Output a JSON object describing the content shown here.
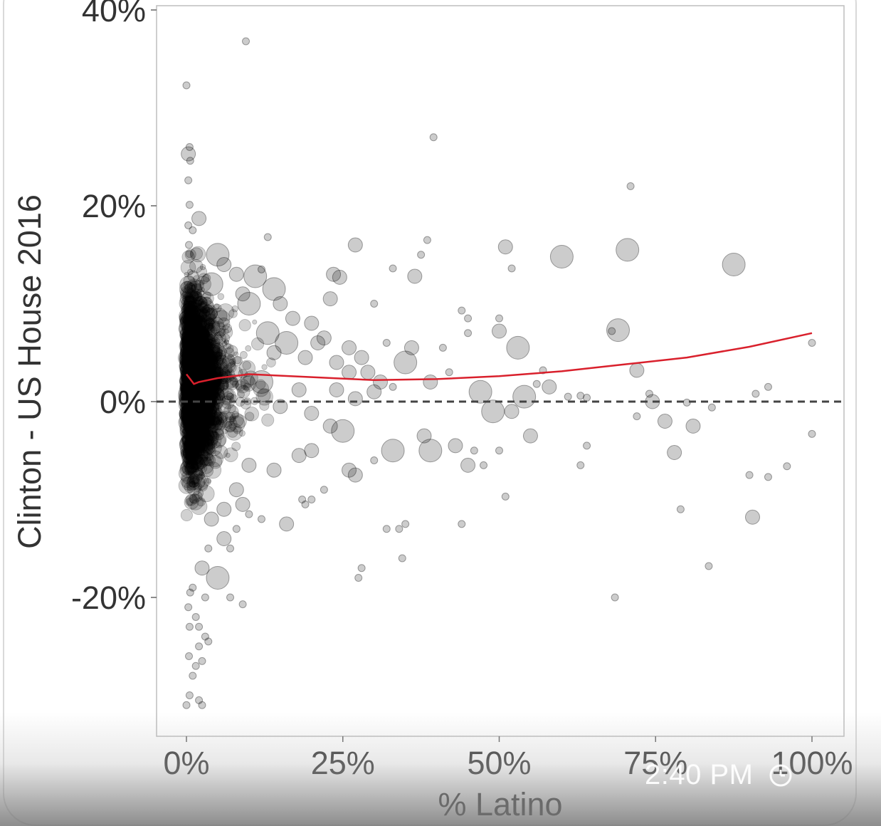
{
  "chart_data": {
    "type": "scatter",
    "title": "",
    "xlabel": "% Latino",
    "ylabel": "Clinton - US House 2016",
    "xlim": [
      -0.05,
      1.05
    ],
    "ylim": [
      -0.34,
      0.41
    ],
    "x_ticks": [
      {
        "value": 0,
        "label": "0%"
      },
      {
        "value": 0.25,
        "label": "25%"
      },
      {
        "value": 0.5,
        "label": "50%"
      },
      {
        "value": 0.75,
        "label": "75%"
      },
      {
        "value": 1.0,
        "label": "100%"
      }
    ],
    "y_ticks": [
      {
        "value": 0.4,
        "label": "40%"
      },
      {
        "value": 0.2,
        "label": "20%"
      },
      {
        "value": 0,
        "label": "0%"
      },
      {
        "value": -0.2,
        "label": "-20%"
      }
    ],
    "reference_line": {
      "y": 0,
      "style": "dashed",
      "color": "#444444"
    },
    "trend": {
      "color": "#d9202c",
      "points": [
        [
          0.0,
          0.028
        ],
        [
          0.012,
          0.018
        ],
        [
          0.02,
          0.02
        ],
        [
          0.05,
          0.024
        ],
        [
          0.1,
          0.028
        ],
        [
          0.2,
          0.025
        ],
        [
          0.3,
          0.022
        ],
        [
          0.4,
          0.023
        ],
        [
          0.5,
          0.026
        ],
        [
          0.6,
          0.031
        ],
        [
          0.7,
          0.038
        ],
        [
          0.8,
          0.045
        ],
        [
          0.9,
          0.056
        ],
        [
          1.0,
          0.07
        ]
      ]
    },
    "points": [
      [
        0.095,
        0.368,
        1
      ],
      [
        0.0,
        0.323,
        1
      ],
      [
        0.003,
        0.253,
        2
      ],
      [
        0.006,
        0.246,
        1
      ],
      [
        0.003,
        0.226,
        1
      ],
      [
        0.005,
        0.201,
        1
      ],
      [
        0.02,
        0.187,
        2
      ],
      [
        0.395,
        0.27,
        1
      ],
      [
        0.71,
        0.22,
        1
      ],
      [
        0.27,
        0.16,
        2
      ],
      [
        0.51,
        0.158,
        2
      ],
      [
        0.6,
        0.148,
        3
      ],
      [
        0.705,
        0.155,
        3
      ],
      [
        0.875,
        0.14,
        3
      ],
      [
        0.385,
        0.165,
        1
      ],
      [
        0.375,
        0.15,
        1
      ],
      [
        0.13,
        0.168,
        1
      ],
      [
        0.12,
        0.135,
        1
      ],
      [
        0.11,
        0.128,
        3
      ],
      [
        0.14,
        0.115,
        3
      ],
      [
        0.235,
        0.13,
        2
      ],
      [
        0.245,
        0.127,
        2
      ],
      [
        0.33,
        0.136,
        1
      ],
      [
        0.365,
        0.128,
        2
      ],
      [
        0.52,
        0.136,
        1
      ],
      [
        0.23,
        0.105,
        2
      ],
      [
        0.3,
        0.1,
        1
      ],
      [
        0.44,
        0.093,
        1
      ],
      [
        0.45,
        0.085,
        1
      ],
      [
        0.5,
        0.085,
        1
      ],
      [
        0.68,
        0.072,
        1
      ],
      [
        0.69,
        0.073,
        3
      ],
      [
        0.45,
        0.07,
        1
      ],
      [
        0.5,
        0.072,
        2
      ],
      [
        0.53,
        0.055,
        3
      ],
      [
        0.57,
        0.032,
        1
      ],
      [
        0.72,
        0.032,
        2
      ],
      [
        1.0,
        0.06,
        1
      ],
      [
        0.93,
        0.015,
        1
      ],
      [
        0.91,
        0.008,
        1
      ],
      [
        0.74,
        0.008,
        1
      ],
      [
        0.745,
        0.0,
        2
      ],
      [
        0.72,
        -0.015,
        1
      ],
      [
        0.765,
        -0.02,
        2
      ],
      [
        0.81,
        -0.025,
        2
      ],
      [
        0.84,
        -0.006,
        1
      ],
      [
        0.8,
        -0.001,
        1
      ],
      [
        1.0,
        -0.033,
        1
      ],
      [
        0.78,
        -0.052,
        2
      ],
      [
        0.64,
        -0.045,
        1
      ],
      [
        0.63,
        -0.065,
        1
      ],
      [
        0.96,
        -0.066,
        1
      ],
      [
        0.9,
        -0.075,
        1
      ],
      [
        0.93,
        -0.077,
        1
      ],
      [
        0.51,
        -0.097,
        1
      ],
      [
        0.79,
        -0.11,
        1
      ],
      [
        0.905,
        -0.118,
        2
      ],
      [
        0.835,
        -0.168,
        1
      ],
      [
        0.685,
        -0.2,
        1
      ],
      [
        0.44,
        -0.125,
        1
      ],
      [
        0.35,
        -0.125,
        1
      ],
      [
        0.34,
        -0.13,
        1
      ],
      [
        0.32,
        -0.13,
        1
      ],
      [
        0.345,
        -0.16,
        1
      ],
      [
        0.28,
        -0.17,
        1
      ],
      [
        0.275,
        -0.18,
        1
      ],
      [
        0.025,
        -0.17,
        2
      ],
      [
        0.035,
        -0.15,
        1
      ],
      [
        0.03,
        -0.2,
        1
      ],
      [
        0.07,
        -0.2,
        1
      ],
      [
        0.09,
        -0.207,
        1
      ],
      [
        0.16,
        -0.125,
        2
      ],
      [
        0.12,
        -0.12,
        1
      ],
      [
        0.39,
        -0.05,
        3
      ],
      [
        0.45,
        -0.065,
        2
      ],
      [
        0.26,
        -0.07,
        2
      ],
      [
        0.27,
        -0.075,
        2
      ],
      [
        0.3,
        -0.06,
        1
      ],
      [
        0.55,
        -0.035,
        2
      ],
      [
        0.5,
        -0.05,
        1
      ],
      [
        0.46,
        -0.05,
        1
      ],
      [
        0.43,
        -0.045,
        2
      ],
      [
        0.33,
        -0.05,
        3
      ],
      [
        0.25,
        -0.03,
        3
      ],
      [
        0.38,
        -0.035,
        2
      ],
      [
        0.475,
        -0.065,
        1
      ],
      [
        0.18,
        -0.055,
        2
      ],
      [
        0.2,
        -0.05,
        2
      ],
      [
        0.35,
        0.04,
        3
      ],
      [
        0.29,
        0.03,
        2
      ],
      [
        0.61,
        0.005,
        1
      ],
      [
        0.63,
        0.006,
        1
      ],
      [
        0.64,
        0.004,
        1
      ],
      [
        0.47,
        0.01,
        3
      ],
      [
        0.54,
        0.005,
        3
      ],
      [
        0.58,
        0.015,
        2
      ],
      [
        0.56,
        0.018,
        1
      ],
      [
        0.49,
        -0.01,
        3
      ],
      [
        0.52,
        -0.01,
        2
      ],
      [
        0.39,
        0.02,
        2
      ],
      [
        0.42,
        0.03,
        1
      ],
      [
        0.36,
        0.055,
        2
      ],
      [
        0.41,
        0.055,
        1
      ],
      [
        0.26,
        0.055,
        2
      ],
      [
        0.22,
        0.065,
        2
      ],
      [
        0.005,
        0.26,
        1
      ],
      [
        0.003,
        0.18,
        1
      ],
      [
        0.01,
        0.175,
        1
      ],
      [
        0.004,
        0.16,
        1
      ],
      [
        0.07,
        0.005,
        1
      ],
      [
        0.12,
        0.02,
        3
      ],
      [
        0.15,
        -0.005,
        2
      ],
      [
        0.18,
        0.012,
        2
      ],
      [
        0.2,
        -0.012,
        2
      ],
      [
        0.24,
        0.012,
        2
      ],
      [
        0.27,
        0.003,
        2
      ],
      [
        0.23,
        -0.025,
        2
      ],
      [
        0.08,
        -0.09,
        2
      ],
      [
        0.09,
        -0.105,
        2
      ],
      [
        0.1,
        -0.115,
        1
      ],
      [
        0.22,
        -0.09,
        1
      ],
      [
        0.2,
        -0.1,
        1
      ],
      [
        0.19,
        -0.105,
        1
      ],
      [
        0.185,
        -0.1,
        1
      ],
      [
        0.1,
        -0.065,
        2
      ],
      [
        0.14,
        -0.07,
        2
      ],
      [
        0.05,
        -0.18,
        3
      ],
      [
        0.06,
        -0.14,
        2
      ],
      [
        0.08,
        -0.13,
        1
      ],
      [
        0.02,
        -0.25,
        1
      ],
      [
        0.03,
        -0.24,
        1
      ],
      [
        0.025,
        -0.265,
        1
      ],
      [
        0.01,
        -0.28,
        1
      ],
      [
        0.005,
        -0.3,
        1
      ],
      [
        0.02,
        -0.305,
        1
      ],
      [
        0.005,
        -0.23,
        1
      ],
      [
        0.003,
        -0.21,
        1
      ],
      [
        0.01,
        -0.19,
        1
      ],
      [
        0.006,
        -0.195,
        1
      ],
      [
        0.004,
        -0.26,
        1
      ],
      [
        0.015,
        -0.27,
        1
      ],
      [
        0.025,
        -0.31,
        1
      ],
      [
        0.0,
        -0.31,
        1
      ],
      [
        0.02,
        -0.23,
        1
      ],
      [
        0.035,
        -0.245,
        1
      ],
      [
        0.015,
        -0.22,
        1
      ],
      [
        0.04,
        -0.12,
        2
      ],
      [
        0.06,
        -0.11,
        2
      ],
      [
        0.07,
        -0.15,
        1
      ],
      [
        0.05,
        0.15,
        3
      ],
      [
        0.06,
        0.14,
        2
      ],
      [
        0.08,
        0.13,
        2
      ],
      [
        0.04,
        0.12,
        3
      ],
      [
        0.09,
        0.11,
        2
      ],
      [
        0.1,
        0.1,
        3
      ],
      [
        0.15,
        0.1,
        2
      ],
      [
        0.17,
        0.085,
        2
      ],
      [
        0.2,
        0.08,
        2
      ],
      [
        0.21,
        0.06,
        2
      ],
      [
        0.16,
        0.06,
        3
      ],
      [
        0.13,
        0.07,
        3
      ],
      [
        0.14,
        0.05,
        2
      ],
      [
        0.19,
        0.045,
        2
      ],
      [
        0.24,
        0.04,
        2
      ],
      [
        0.26,
        0.03,
        2
      ],
      [
        0.31,
        0.02,
        2
      ],
      [
        0.33,
        0.015,
        1
      ],
      [
        0.3,
        0.01,
        2
      ],
      [
        0.28,
        0.045,
        2
      ],
      [
        0.32,
        0.06,
        1
      ]
    ]
  },
  "overlay": {
    "time": "2:40 PM",
    "icon": "clock-icon"
  }
}
